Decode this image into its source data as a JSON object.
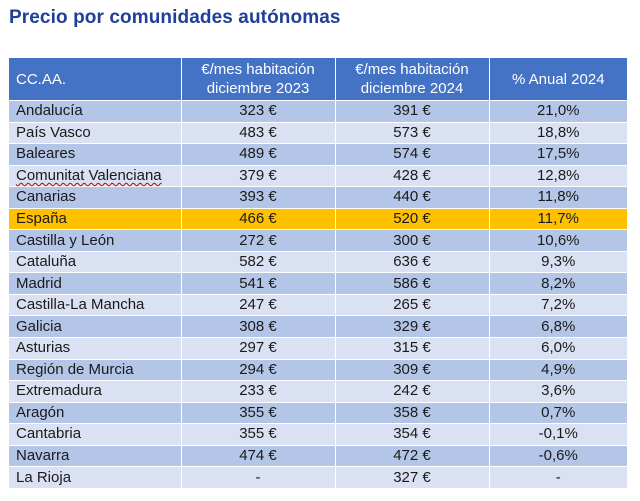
{
  "title": "Precio por comunidades autónomas",
  "table": {
    "headers": [
      "CC.AA.",
      "€/mes habitación diciembre 2023",
      "€/mes habitación diciembre 2024",
      "% Anual 2024"
    ],
    "rows": [
      [
        "Andalucía",
        "323 €",
        "391 €",
        "21,0%"
      ],
      [
        "País Vasco",
        "483 €",
        "573 €",
        "18,8%"
      ],
      [
        "Baleares",
        "489 €",
        "574 €",
        "17,5%"
      ],
      [
        "Comunitat Valenciana",
        "379 €",
        "428 €",
        "12,8%"
      ],
      [
        "Canarias",
        "393 €",
        "440 €",
        "11,8%"
      ],
      [
        "España",
        "466 €",
        "520 €",
        "11,7%"
      ],
      [
        "Castilla y León",
        "272 €",
        "300 €",
        "10,6%"
      ],
      [
        "Cataluña",
        "582 €",
        "636 €",
        "9,3%"
      ],
      [
        "Madrid",
        "541 €",
        "586 €",
        "8,2%"
      ],
      [
        "Castilla-La Mancha",
        "247 €",
        "265 €",
        "7,2%"
      ],
      [
        "Galicia",
        "308 €",
        "329 €",
        "6,8%"
      ],
      [
        "Asturias",
        "297 €",
        "315 €",
        "6,0%"
      ],
      [
        "Región de Murcia",
        "294 €",
        "309 €",
        "4,9%"
      ],
      [
        "Extremadura",
        "233 €",
        "242 €",
        "3,6%"
      ],
      [
        "Aragón",
        "355 €",
        "358 €",
        "0,7%"
      ],
      [
        "Cantabria",
        "355 €",
        "354 €",
        "-0,1%"
      ],
      [
        "Navarra",
        "474 €",
        "472 €",
        "-0,6%"
      ],
      [
        "La Rioja",
        "-",
        "327 €",
        "-"
      ]
    ],
    "highlight_row": "España",
    "colors": {
      "header": "#4472c4",
      "row_dark": "#b4c6e7",
      "row_light": "#d9e1f2",
      "highlight": "#ffc000",
      "title": "#1f3f99"
    }
  }
}
